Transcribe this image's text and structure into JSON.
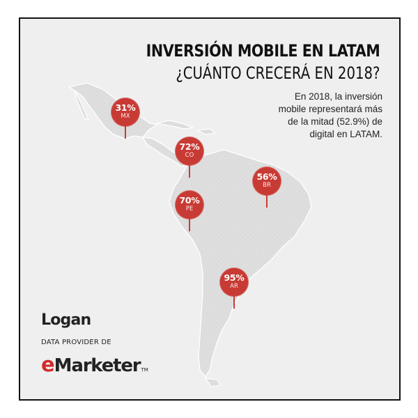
{
  "title": "INVERSIÓN MOBILE EN LATAM",
  "subtitle": "¿CUÁNTO CRECERÁ EN 2018?",
  "description": "En 2018, la inversión mobile representará más de la mitad (52.9%) de digital en LATAM.",
  "pins": [
    {
      "code": "MX",
      "value": "31%"
    },
    {
      "code": "CO",
      "value": "72%"
    },
    {
      "code": "BR",
      "value": "56%"
    },
    {
      "code": "PE",
      "value": "70%"
    },
    {
      "code": "AR",
      "value": "95%"
    }
  ],
  "branding": {
    "logo": "Logan",
    "provider": "DATA PROVIDER DE",
    "emarketer_e": "e",
    "emarketer_rest": "Marketer",
    "trademark": "TM"
  },
  "colors": {
    "background": "#efefef",
    "land": "#dcdcdc",
    "pin": "#c83a34",
    "text": "#111111"
  }
}
